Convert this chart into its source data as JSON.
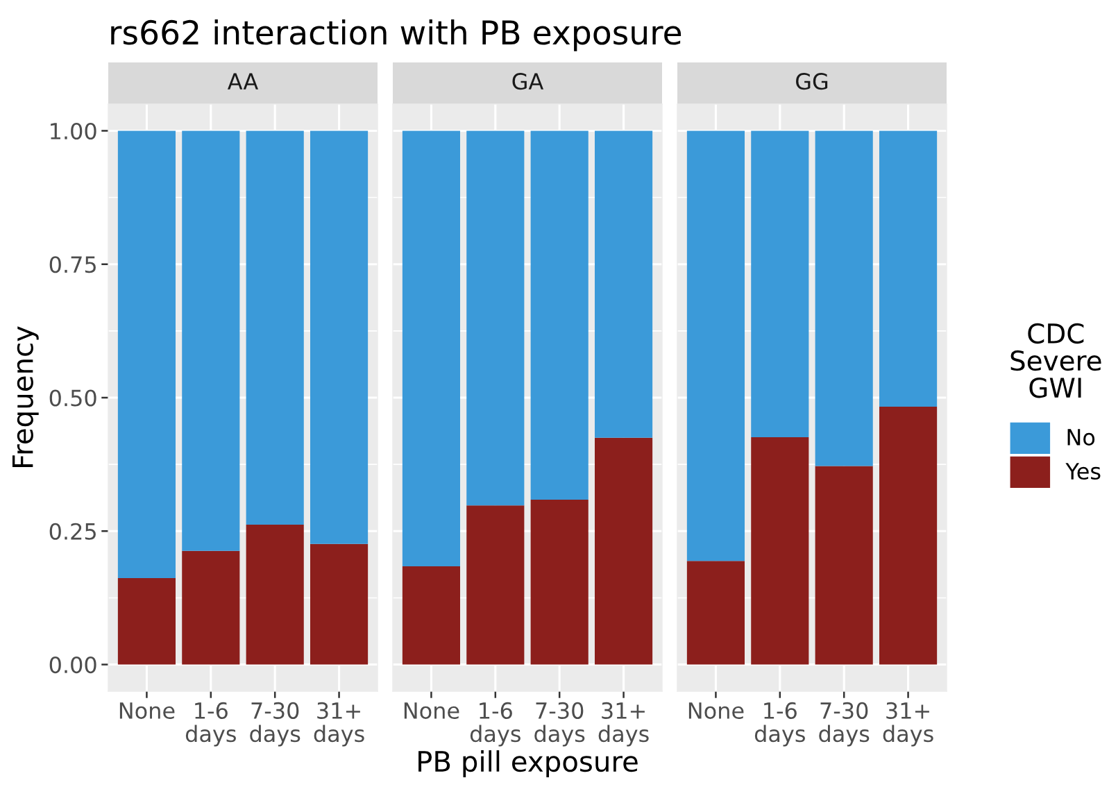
{
  "chart_data": [
    {
      "type": "bar",
      "title": "rs662 interaction with PB exposure",
      "subtitle": "AA",
      "ylabel": "Frequency",
      "categories": [
        "None",
        "1-6\ndays",
        "7-30\ndays",
        "31+\ndays"
      ],
      "stacked": true,
      "series": [
        {
          "color": "#8c1f1c",
          "values": [
            0.162,
            0.213,
            0.262,
            0.226
          ]
        },
        {
          "color": "#3b9ad9",
          "values": [
            0.838,
            0.787,
            0.738,
            0.774
          ]
        }
      ],
      "ylim": [
        -0.05,
        1.05
      ],
      "yticks": [
        {
          "value": 0,
          "label": "0.00"
        },
        {
          "value": 0.25,
          "label": "0.25"
        },
        {
          "value": 0.5,
          "label": "0.50"
        },
        {
          "value": 0.75,
          "label": "0.75"
        },
        {
          "value": 1,
          "label": "1.00"
        }
      ],
      "grid": true
    },
    {
      "type": "bar",
      "subtitle": "GA",
      "xlabel": "PB pill exposure",
      "categories": [
        "None",
        "1-6\ndays",
        "7-30\ndays",
        "31+\ndays"
      ],
      "stacked": true,
      "series": [
        {
          "color": "#8c1f1c",
          "values": [
            0.184,
            0.298,
            0.309,
            0.425
          ]
        },
        {
          "color": "#3b9ad9",
          "values": [
            0.816,
            0.702,
            0.691,
            0.575
          ]
        }
      ],
      "ylim": [
        -0.05,
        1.05
      ],
      "yticks": [
        0,
        0.25,
        0.5,
        0.75,
        1
      ],
      "tick_labels": "x",
      "grid": true
    },
    {
      "type": "bar",
      "subtitle": "GG",
      "legend_title": "CDC\nSevere\nGWI",
      "legend": "right",
      "categories": [
        "None",
        "1-6\ndays",
        "7-30\ndays",
        "31+\ndays"
      ],
      "stacked": true,
      "series": [
        {
          "name": "Yes",
          "color": "#8c1f1c",
          "values": [
            0.194,
            0.426,
            0.372,
            0.483
          ]
        },
        {
          "name": "No",
          "color": "#3b9ad9",
          "values": [
            0.806,
            0.574,
            0.628,
            0.517
          ]
        }
      ],
      "ylim": [
        -0.05,
        1.05
      ],
      "yticks": [
        0,
        0.25,
        0.5,
        0.75,
        1
      ],
      "tick_labels": "x",
      "grid": true
    }
  ]
}
